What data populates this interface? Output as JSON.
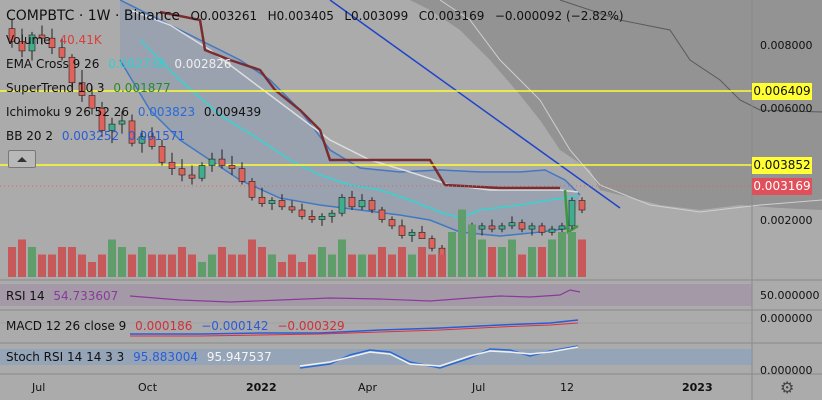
{
  "header": {
    "symbol": "COMPBTC · 1W · Binance",
    "open": "O0.003261",
    "high": "H0.003405",
    "low": "L0.003099",
    "close": "C0.003169",
    "change": "−0.000092 (−2.82%)"
  },
  "indicators": {
    "volume": {
      "label": "Volume",
      "value": "40.41K"
    },
    "ema": {
      "label": "EMA Cross 9 26",
      "v1": "0.002738",
      "v2": "0.002826"
    },
    "supertrend": {
      "label": "SuperTrend 10 3",
      "v1": "0.001877"
    },
    "ichimoku": {
      "label": "Ichimoku 9 26 52 26",
      "v1": "0.003823",
      "v2": "0.009439"
    },
    "bb": {
      "label": "BB 20 2",
      "v1": "0.003252",
      "v2": "0.001571"
    },
    "rsi": {
      "label": "RSI 14",
      "v1": "54.733607"
    },
    "macd": {
      "label": "MACD 12 26 close 9",
      "v1": "0.000186",
      "v2": "−0.000142",
      "v3": "−0.000329"
    },
    "stoch": {
      "label": "Stoch RSI 14 14 3 3",
      "v1": "95.883004",
      "v2": "95.947537"
    }
  },
  "price_labels": {
    "yellow_top": "0.006409",
    "yellow_mid": "0.003852",
    "current": "0.003169"
  },
  "colors": {
    "background": "#ababab",
    "up": "#3fae8d",
    "down": "#e0625a",
    "vol_up": "#5f9e6a",
    "vol_down": "#c8595a",
    "ema_fast": "#35d4d4",
    "ema_slow": "#dddddd",
    "bb": "#3a74c8",
    "trendline": "#1f45c8",
    "supertrend": "#7a2d31",
    "yellow": "#ffff33",
    "cloud": "#8e8e8e",
    "rsi": "#8a3a9a",
    "macd": "#2a5cd8",
    "macd_signal": "#e0303a",
    "stoch_k": "#2a6ad8",
    "stoch_d": "#f0f0f0"
  },
  "chart_data": {
    "type": "candlestick",
    "x_ticks": [
      "Jul",
      "Oct",
      "2022",
      "Apr",
      "Jul",
      "12",
      "2023"
    ],
    "price_axis_ticks": [
      "0.008000",
      "0.006000",
      "0.002000"
    ],
    "candles": [
      {
        "o": 0.0089,
        "h": 0.0092,
        "l": 0.0083,
        "c": 0.0085
      },
      {
        "o": 0.0085,
        "h": 0.0089,
        "l": 0.008,
        "c": 0.0082
      },
      {
        "o": 0.0082,
        "h": 0.0088,
        "l": 0.0079,
        "c": 0.0087
      },
      {
        "o": 0.0087,
        "h": 0.009,
        "l": 0.0084,
        "c": 0.0086
      },
      {
        "o": 0.0086,
        "h": 0.0089,
        "l": 0.0081,
        "c": 0.0083
      },
      {
        "o": 0.0083,
        "h": 0.0086,
        "l": 0.0079,
        "c": 0.008
      },
      {
        "o": 0.008,
        "h": 0.0081,
        "l": 0.007,
        "c": 0.0072
      },
      {
        "o": 0.0072,
        "h": 0.0076,
        "l": 0.0066,
        "c": 0.0068
      },
      {
        "o": 0.0068,
        "h": 0.0071,
        "l": 0.0062,
        "c": 0.0064
      },
      {
        "o": 0.0064,
        "h": 0.0066,
        "l": 0.0055,
        "c": 0.0057
      },
      {
        "o": 0.0057,
        "h": 0.0061,
        "l": 0.0053,
        "c": 0.0059
      },
      {
        "o": 0.0059,
        "h": 0.0063,
        "l": 0.0056,
        "c": 0.006
      },
      {
        "o": 0.006,
        "h": 0.0062,
        "l": 0.0052,
        "c": 0.0053
      },
      {
        "o": 0.0053,
        "h": 0.0057,
        "l": 0.005,
        "c": 0.0055
      },
      {
        "o": 0.0055,
        "h": 0.0058,
        "l": 0.0051,
        "c": 0.0052
      },
      {
        "o": 0.0052,
        "h": 0.0054,
        "l": 0.0046,
        "c": 0.0047
      },
      {
        "o": 0.0047,
        "h": 0.005,
        "l": 0.0043,
        "c": 0.0045
      },
      {
        "o": 0.0045,
        "h": 0.0048,
        "l": 0.0041,
        "c": 0.0043
      },
      {
        "o": 0.0043,
        "h": 0.0046,
        "l": 0.004,
        "c": 0.0042
      },
      {
        "o": 0.0042,
        "h": 0.0047,
        "l": 0.0041,
        "c": 0.0046
      },
      {
        "o": 0.0046,
        "h": 0.005,
        "l": 0.0044,
        "c": 0.0048
      },
      {
        "o": 0.0048,
        "h": 0.0051,
        "l": 0.0045,
        "c": 0.0046
      },
      {
        "o": 0.0046,
        "h": 0.0049,
        "l": 0.0043,
        "c": 0.0045
      },
      {
        "o": 0.0045,
        "h": 0.0047,
        "l": 0.004,
        "c": 0.0041
      },
      {
        "o": 0.0041,
        "h": 0.0042,
        "l": 0.0035,
        "c": 0.0036
      },
      {
        "o": 0.0036,
        "h": 0.0039,
        "l": 0.0033,
        "c": 0.0034
      },
      {
        "o": 0.0034,
        "h": 0.0036,
        "l": 0.0032,
        "c": 0.0035
      },
      {
        "o": 0.0035,
        "h": 0.0037,
        "l": 0.0032,
        "c": 0.0033
      },
      {
        "o": 0.0033,
        "h": 0.0035,
        "l": 0.0031,
        "c": 0.0032
      },
      {
        "o": 0.0032,
        "h": 0.0034,
        "l": 0.0029,
        "c": 0.003
      },
      {
        "o": 0.003,
        "h": 0.0032,
        "l": 0.0028,
        "c": 0.0029
      },
      {
        "o": 0.0029,
        "h": 0.0031,
        "l": 0.0027,
        "c": 0.003
      },
      {
        "o": 0.003,
        "h": 0.0032,
        "l": 0.0028,
        "c": 0.0031
      },
      {
        "o": 0.0031,
        "h": 0.0037,
        "l": 0.003,
        "c": 0.0036
      },
      {
        "o": 0.0036,
        "h": 0.0038,
        "l": 0.0032,
        "c": 0.0033
      },
      {
        "o": 0.0033,
        "h": 0.0037,
        "l": 0.0032,
        "c": 0.0035
      },
      {
        "o": 0.0035,
        "h": 0.0036,
        "l": 0.0031,
        "c": 0.0032
      },
      {
        "o": 0.0032,
        "h": 0.0033,
        "l": 0.0028,
        "c": 0.0029
      },
      {
        "o": 0.0029,
        "h": 0.003,
        "l": 0.0026,
        "c": 0.0027
      },
      {
        "o": 0.0027,
        "h": 0.0029,
        "l": 0.0023,
        "c": 0.0024
      },
      {
        "o": 0.0024,
        "h": 0.0026,
        "l": 0.0022,
        "c": 0.0025
      },
      {
        "o": 0.0025,
        "h": 0.0027,
        "l": 0.0023,
        "c": 0.0023
      },
      {
        "o": 0.0023,
        "h": 0.0024,
        "l": 0.0019,
        "c": 0.002
      },
      {
        "o": 0.002,
        "h": 0.0021,
        "l": 0.0016,
        "c": 0.0017
      },
      {
        "o": 0.0017,
        "h": 0.002,
        "l": 0.0016,
        "c": 0.0019
      },
      {
        "o": 0.0019,
        "h": 0.0026,
        "l": 0.0018,
        "c": 0.0025
      },
      {
        "o": 0.0025,
        "h": 0.0028,
        "l": 0.0024,
        "c": 0.0026
      },
      {
        "o": 0.0026,
        "h": 0.0028,
        "l": 0.0024,
        "c": 0.0027
      },
      {
        "o": 0.0027,
        "h": 0.0029,
        "l": 0.0025,
        "c": 0.0026
      },
      {
        "o": 0.0026,
        "h": 0.0028,
        "l": 0.0025,
        "c": 0.0027
      },
      {
        "o": 0.0027,
        "h": 0.003,
        "l": 0.0026,
        "c": 0.0028
      },
      {
        "o": 0.0028,
        "h": 0.0029,
        "l": 0.0025,
        "c": 0.0026
      },
      {
        "o": 0.0026,
        "h": 0.0028,
        "l": 0.0024,
        "c": 0.0027
      },
      {
        "o": 0.0027,
        "h": 0.0028,
        "l": 0.0024,
        "c": 0.0025
      },
      {
        "o": 0.0025,
        "h": 0.0027,
        "l": 0.0024,
        "c": 0.0026
      },
      {
        "o": 0.0026,
        "h": 0.0028,
        "l": 0.0025,
        "c": 0.0027
      },
      {
        "o": 0.0027,
        "h": 0.0036,
        "l": 0.0026,
        "c": 0.0035
      },
      {
        "o": 0.0035,
        "h": 0.0036,
        "l": 0.0031,
        "c": 0.0032
      }
    ],
    "volumes": [
      0.4,
      0.5,
      0.4,
      0.3,
      0.3,
      0.4,
      0.4,
      0.3,
      0.2,
      0.3,
      0.5,
      0.4,
      0.3,
      0.4,
      0.3,
      0.3,
      0.3,
      0.4,
      0.3,
      0.2,
      0.3,
      0.4,
      0.3,
      0.3,
      0.5,
      0.4,
      0.3,
      0.2,
      0.3,
      0.2,
      0.3,
      0.4,
      0.3,
      0.5,
      0.3,
      0.3,
      0.3,
      0.4,
      0.3,
      0.4,
      0.3,
      0.4,
      0.3,
      0.3,
      0.6,
      0.9,
      0.7,
      0.5,
      0.4,
      0.4,
      0.5,
      0.3,
      0.4,
      0.4,
      0.5,
      0.6,
      0.6,
      0.5
    ],
    "yellow_levels": [
      0.006409,
      0.003852
    ],
    "current_price": 0.003169,
    "price_range": [
      0.001,
      0.0098
    ]
  }
}
